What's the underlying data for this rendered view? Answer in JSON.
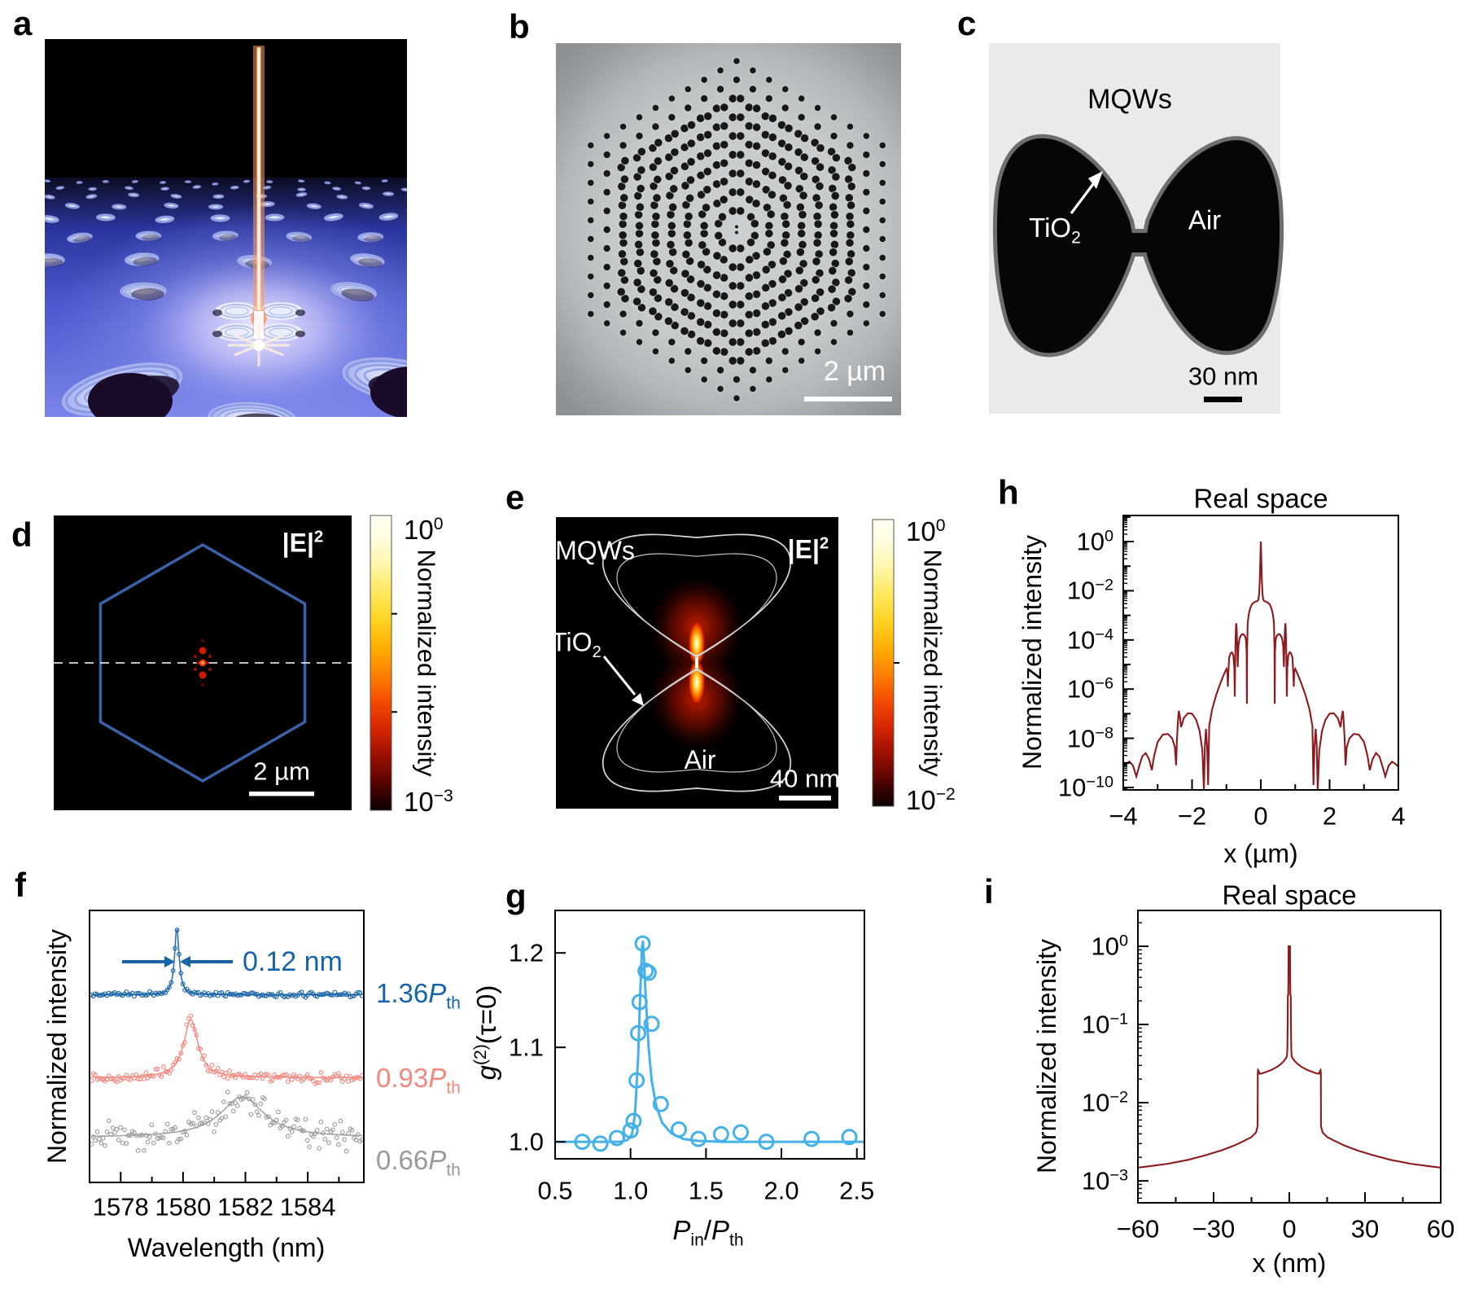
{
  "panel_labels": {
    "a": "a",
    "b": "b",
    "c": "c",
    "d": "d",
    "e": "e",
    "f": "f",
    "g": "g",
    "h": "h",
    "i": "i"
  },
  "colors": {
    "dark_red": "#8c1a1e",
    "g_blue": "#45b1e8",
    "f_blue": "#1763a8",
    "f_red": "#f4867e",
    "f_gray": "#9a9a9a",
    "hex_blue": "#3b62a8",
    "annot_blue": "#1763a8"
  },
  "panel_b": {
    "scale_bar": "2 µm"
  },
  "panel_c": {
    "mqws": "MQWs",
    "tio2_base": "TiO",
    "tio2_sub": "2",
    "air": "Air",
    "scale_bar": "30 nm"
  },
  "panel_d": {
    "field_base": "|E|",
    "field_sup": "2",
    "scale_bar": "2 µm",
    "colorbar": {
      "title": "Normalized intensity",
      "top_exp": "0",
      "bottom_exp": "-3"
    }
  },
  "panel_e": {
    "mqws": "MQWs",
    "tio2_base": "TiO",
    "tio2_sub": "2",
    "air": "Air",
    "field_base": "|E|",
    "field_sup": "2",
    "scale_bar": "40 nm",
    "colorbar": {
      "title": "Normalized intensity",
      "top_exp": "0",
      "bottom_exp": "-2"
    }
  },
  "chart_data": [
    {
      "id": "f",
      "type": "line",
      "xlabel": "Wavelength (nm)",
      "ylabel": "Normalized intensity",
      "xlim": [
        1577.0,
        1585.8
      ],
      "xticks": [
        1578,
        1580,
        1582,
        1584
      ],
      "minor_xticks": [
        1579,
        1581,
        1583,
        1585
      ],
      "annotation": "0.12 nm",
      "series": [
        {
          "label_pre": "1.36",
          "label_sym": "P",
          "label_sub": "th",
          "color": "#1763a8",
          "baseline": 0.31,
          "height": 0.25,
          "center": 1579.8,
          "fwhm": 0.17,
          "noise": 0.005
        },
        {
          "label_pre": "0.93",
          "label_sym": "P",
          "label_sub": "th",
          "color": "#f4867e",
          "baseline": 0.615,
          "height": 0.215,
          "center": 1580.25,
          "fwhm": 0.55,
          "noise": 0.011
        },
        {
          "label_pre": "0.66",
          "label_sym": "P",
          "label_sub": "th",
          "color": "#9a9a9a",
          "baseline": 0.835,
          "height": 0.15,
          "center": 1581.9,
          "fwhm": 1.7,
          "noise": 0.03
        }
      ]
    },
    {
      "id": "g",
      "type": "scatter",
      "xlabel_rich": [
        [
          "i",
          "P"
        ],
        [
          "sub",
          "in"
        ],
        [
          "t",
          "/"
        ],
        [
          "i",
          "P"
        ],
        [
          "sub",
          "th"
        ]
      ],
      "ylabel_rich": [
        [
          "i",
          "g"
        ],
        [
          "sup",
          "(2)"
        ],
        [
          "t",
          "(τ=0)"
        ]
      ],
      "xlim": [
        0.5,
        2.55
      ],
      "ylim": [
        0.982,
        1.245
      ],
      "xticks": [
        [
          0.5,
          "0.5"
        ],
        [
          1.0,
          "1.0"
        ],
        [
          1.5,
          "1.5"
        ],
        [
          2.0,
          "2.0"
        ],
        [
          2.5,
          "2.5"
        ]
      ],
      "yticks": [
        [
          1.0,
          "1.0"
        ],
        [
          1.1,
          "1.1"
        ],
        [
          1.2,
          "1.2"
        ]
      ],
      "color": "#45b1e8",
      "points": [
        [
          0.68,
          1.0
        ],
        [
          0.8,
          0.998
        ],
        [
          0.91,
          1.004
        ],
        [
          1.0,
          1.012
        ],
        [
          1.02,
          1.022
        ],
        [
          1.04,
          1.065
        ],
        [
          1.05,
          1.115
        ],
        [
          1.06,
          1.148
        ],
        [
          1.08,
          1.21
        ],
        [
          1.1,
          1.181
        ],
        [
          1.12,
          1.179
        ],
        [
          1.14,
          1.125
        ],
        [
          1.2,
          1.04
        ],
        [
          1.32,
          1.013
        ],
        [
          1.45,
          1.003
        ],
        [
          1.6,
          1.008
        ],
        [
          1.73,
          1.01
        ],
        [
          1.9,
          1.0
        ],
        [
          2.2,
          1.003
        ],
        [
          2.45,
          1.005
        ]
      ],
      "line": [
        [
          0.5,
          1.0
        ],
        [
          0.93,
          1.0
        ],
        [
          0.98,
          1.002
        ],
        [
          1.01,
          1.008
        ],
        [
          1.03,
          1.03
        ],
        [
          1.05,
          1.09
        ],
        [
          1.065,
          1.16
        ],
        [
          1.075,
          1.205
        ],
        [
          1.082,
          1.212
        ],
        [
          1.09,
          1.19
        ],
        [
          1.1,
          1.155
        ],
        [
          1.12,
          1.1
        ],
        [
          1.14,
          1.065
        ],
        [
          1.17,
          1.038
        ],
        [
          1.21,
          1.02
        ],
        [
          1.27,
          1.009
        ],
        [
          1.35,
          1.003
        ],
        [
          1.45,
          1.001
        ],
        [
          1.6,
          1.0
        ],
        [
          2.55,
          1.0
        ]
      ]
    },
    {
      "id": "h",
      "type": "logline",
      "title": "Real space",
      "xlabel": "x (µm)",
      "ylabel": "Normalized intensity",
      "xlim": [
        -4,
        4
      ],
      "xticks": [
        -4,
        -2,
        0,
        2,
        4
      ],
      "minor_xticks": [
        -3,
        -1,
        1,
        3
      ],
      "ytick_exps": [
        0,
        -2,
        -4,
        -6,
        -8,
        -10
      ],
      "ylim_log": [
        1.06,
        -10.1
      ],
      "color": "#8c1a1e",
      "mirror": true,
      "data_half": [
        [
          0,
          0
        ],
        [
          0.012,
          -0.6
        ],
        [
          0.03,
          -1.6
        ],
        [
          0.05,
          -2.15
        ],
        [
          0.07,
          -2.36
        ],
        [
          0.1,
          -2.42
        ],
        [
          0.15,
          -2.44
        ],
        [
          0.2,
          -2.48
        ],
        [
          0.26,
          -2.56
        ],
        [
          0.31,
          -2.72
        ],
        [
          0.35,
          -2.95
        ],
        [
          0.38,
          -3.3
        ],
        [
          0.398,
          -4.3
        ],
        [
          0.405,
          -6.6
        ],
        [
          0.412,
          -4.5
        ],
        [
          0.43,
          -4.0
        ],
        [
          0.46,
          -3.85
        ],
        [
          0.5,
          -3.78
        ],
        [
          0.54,
          -3.76
        ],
        [
          0.58,
          -3.82
        ],
        [
          0.62,
          -3.95
        ],
        [
          0.65,
          -4.25
        ],
        [
          0.672,
          -5.1
        ],
        [
          0.685,
          -4.35
        ],
        [
          0.7,
          -3.6
        ],
        [
          0.712,
          -3.32
        ],
        [
          0.722,
          -3.45
        ],
        [
          0.735,
          -4.1
        ],
        [
          0.748,
          -5.2
        ],
        [
          0.758,
          -6.3
        ],
        [
          0.77,
          -5.15
        ],
        [
          0.8,
          -4.62
        ],
        [
          0.84,
          -4.5
        ],
        [
          0.88,
          -4.55
        ],
        [
          0.92,
          -4.72
        ],
        [
          0.945,
          -5.35
        ],
        [
          0.958,
          -5.9
        ],
        [
          0.97,
          -5.3
        ],
        [
          1.0,
          -5.18
        ],
        [
          1.08,
          -5.42
        ],
        [
          1.18,
          -5.78
        ],
        [
          1.3,
          -6.25
        ],
        [
          1.42,
          -6.85
        ],
        [
          1.5,
          -7.5
        ],
        [
          1.532,
          -9.9
        ],
        [
          1.56,
          -8.4
        ],
        [
          1.595,
          -7.62
        ],
        [
          1.625,
          -8.3
        ],
        [
          1.655,
          -10.15
        ],
        [
          1.7,
          -8.5
        ],
        [
          1.78,
          -7.7
        ],
        [
          1.88,
          -7.25
        ],
        [
          2.0,
          -7.0
        ],
        [
          2.12,
          -6.98
        ],
        [
          2.24,
          -7.18
        ],
        [
          2.32,
          -7.55
        ],
        [
          2.355,
          -7.1
        ],
        [
          2.385,
          -6.88
        ],
        [
          2.41,
          -7.3
        ],
        [
          2.44,
          -8.1
        ],
        [
          2.465,
          -9.1
        ],
        [
          2.5,
          -8.35
        ],
        [
          2.58,
          -8.0
        ],
        [
          2.7,
          -7.82
        ],
        [
          2.85,
          -7.85
        ],
        [
          3.0,
          -8.15
        ],
        [
          3.1,
          -8.7
        ],
        [
          3.17,
          -9.3
        ],
        [
          3.25,
          -8.85
        ],
        [
          3.35,
          -8.6
        ],
        [
          3.45,
          -8.75
        ],
        [
          3.55,
          -9.2
        ],
        [
          3.62,
          -9.55
        ],
        [
          3.72,
          -9.1
        ],
        [
          3.82,
          -8.95
        ],
        [
          3.92,
          -9.05
        ],
        [
          4.0,
          -9.15
        ]
      ]
    },
    {
      "id": "i",
      "type": "logline",
      "title": "Real space",
      "xlabel": "x (nm)",
      "ylabel": "Normalized intensity",
      "xlim": [
        -60,
        60
      ],
      "xticks": [
        -60,
        -30,
        0,
        30,
        60
      ],
      "minor_xticks": [
        -45,
        -15,
        15,
        45
      ],
      "ytick_exps": [
        0,
        -1,
        -2,
        -3
      ],
      "ylim_log": [
        0.458,
        -3.28
      ],
      "color": "#8c1a1e",
      "mirror": true,
      "data_half": [
        [
          0,
          0
        ],
        [
          0.3,
          0
        ],
        [
          0.36,
          -0.45
        ],
        [
          0.42,
          -0.62
        ],
        [
          0.58,
          -0.64
        ],
        [
          0.66,
          -1.0
        ],
        [
          0.76,
          -1.3
        ],
        [
          0.9,
          -1.4
        ],
        [
          1.3,
          -1.43
        ],
        [
          2.2,
          -1.47
        ],
        [
          3.5,
          -1.51
        ],
        [
          5,
          -1.545
        ],
        [
          7,
          -1.58
        ],
        [
          9,
          -1.605
        ],
        [
          10.8,
          -1.625
        ],
        [
          11.8,
          -1.63
        ],
        [
          12.1,
          -1.6
        ],
        [
          12.4,
          -1.585
        ],
        [
          12.5,
          -1.62
        ],
        [
          12.55,
          -2.3
        ],
        [
          13.2,
          -2.38
        ],
        [
          15,
          -2.44
        ],
        [
          18,
          -2.49
        ],
        [
          22,
          -2.55
        ],
        [
          27,
          -2.61
        ],
        [
          33,
          -2.67
        ],
        [
          40,
          -2.73
        ],
        [
          48,
          -2.78
        ],
        [
          55,
          -2.81
        ],
        [
          60,
          -2.83
        ]
      ]
    }
  ]
}
